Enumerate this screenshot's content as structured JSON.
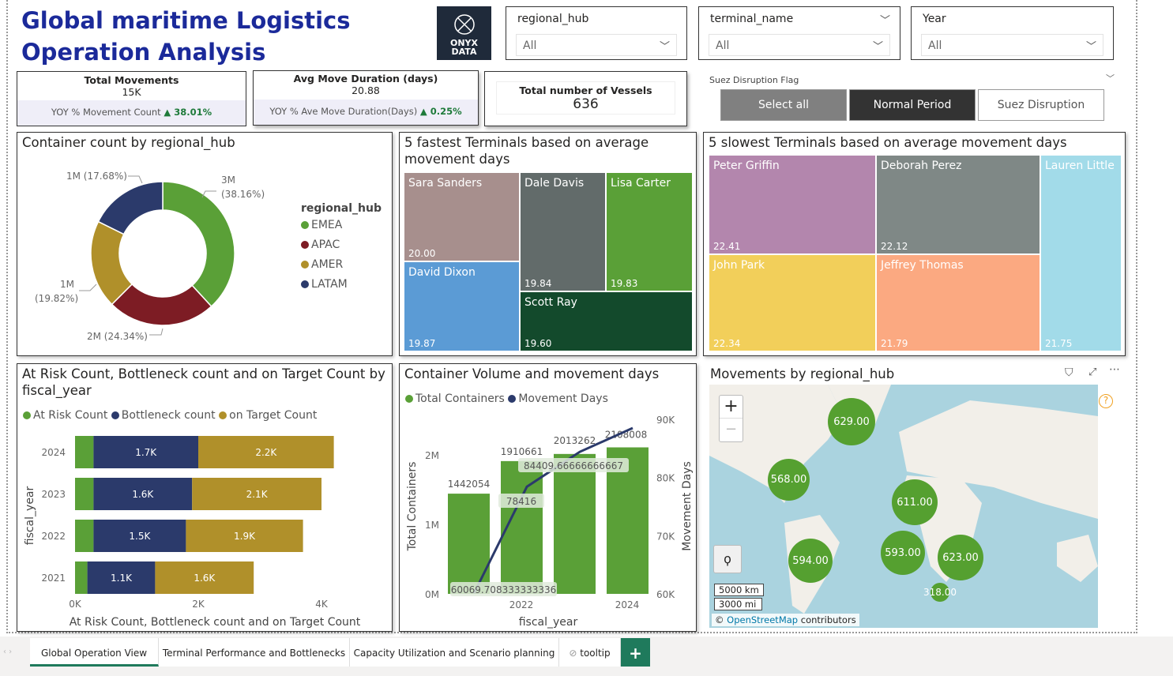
{
  "header": {
    "title": "Global maritime Logistics Operation Analysis",
    "logo_text": "ONYX DATA"
  },
  "slicers": [
    {
      "label": "regional_hub",
      "value": "All"
    },
    {
      "label": "terminal_name",
      "value": "All"
    },
    {
      "label": "Year",
      "value": "All"
    }
  ],
  "kpis": {
    "total_movements": {
      "title": "Total Movements",
      "value": "15K",
      "yoy_label": "YOY % Movement Count",
      "yoy_value": "▲ 38.01%"
    },
    "avg_duration": {
      "title": "Avg Move Duration (days)",
      "value": "20.88",
      "yoy_label": "YOY % Ave Move Duration(Days)",
      "yoy_value": "▲ 0.25%"
    },
    "vessels": {
      "title": "Total number of Vessels",
      "value": "636"
    }
  },
  "suez": {
    "label": "Suez Disruption Flag",
    "options": [
      "Select all",
      "Normal Period",
      "Suez Disruption"
    ],
    "selected": "Normal Period"
  },
  "donut": {
    "title": "Container count by regional_hub",
    "legend_title": "regional_hub",
    "slices": [
      {
        "name": "EMEA",
        "pct": 38.16,
        "label": "3M",
        "pct_label": "(38.16%)",
        "color": "#5aa037"
      },
      {
        "name": "APAC",
        "pct": 24.34,
        "label": "2M (24.34%)",
        "color": "#7d1c24"
      },
      {
        "name": "AMER",
        "pct": 19.82,
        "label": "1M",
        "pct_label": "(19.82%)",
        "color": "#b0902a"
      },
      {
        "name": "LATAM",
        "pct": 17.68,
        "label": "1M (17.68%)",
        "color": "#2b3a6b"
      }
    ]
  },
  "fastest": {
    "title": "5 fastest Terminals based on average movement days",
    "items": [
      {
        "name": "Sara Sanders",
        "value": "20.00"
      },
      {
        "name": "David Dixon",
        "value": "19.87"
      },
      {
        "name": "Dale Davis",
        "value": "19.84"
      },
      {
        "name": "Lisa Carter",
        "value": "19.83"
      },
      {
        "name": "Scott Ray",
        "value": "19.60"
      }
    ]
  },
  "slowest": {
    "title": "5 slowest Terminals based on average movement days",
    "items": [
      {
        "name": "Peter Griffin",
        "value": "22.41"
      },
      {
        "name": "Deborah Perez",
        "value": "22.12"
      },
      {
        "name": "Lauren Little",
        "value": "21.75"
      },
      {
        "name": "John Park",
        "value": "22.34"
      },
      {
        "name": "Jeffrey Thomas",
        "value": "21.79"
      }
    ]
  },
  "chart_data": [
    {
      "type": "bar",
      "title": "At Risk Count, Bottleneck count and on Target Count by fiscal_year",
      "xlabel": "At Risk Count, Bottleneck count and on Target Count",
      "ylabel": "fiscal_year",
      "orientation": "horizontal",
      "stacked": true,
      "categories": [
        "2024",
        "2023",
        "2022",
        "2021"
      ],
      "xlim": [
        0,
        4.3
      ],
      "xticks": [
        "0K",
        "2K",
        "4K"
      ],
      "legend": "top",
      "series": [
        {
          "name": "At Risk Count",
          "color": "#5aa037",
          "values": [
            0.3,
            0.3,
            0.3,
            0.2
          ],
          "labels": [
            "",
            "",
            "",
            ""
          ]
        },
        {
          "name": "Bottleneck count",
          "color": "#2b3a6b",
          "values": [
            1.7,
            1.6,
            1.5,
            1.1
          ],
          "labels": [
            "1.7K",
            "1.6K",
            "1.5K",
            "1.1K"
          ]
        },
        {
          "name": "on Target Count",
          "color": "#b0902a",
          "values": [
            2.2,
            2.1,
            1.9,
            1.6
          ],
          "labels": [
            "2.2K",
            "2.1K",
            "1.9K",
            "1.6K"
          ]
        }
      ]
    },
    {
      "type": "bar+line",
      "title": "Container Volume and movement days",
      "xlabel": "fiscal_year",
      "ylabel": "Total Containers",
      "y2label": "Movement Days",
      "legend": "top",
      "categories": [
        "2021",
        "2022",
        "2023",
        "2024"
      ],
      "xticks": [
        "2022",
        "2024"
      ],
      "ylim": [
        0,
        2000000
      ],
      "yticks": [
        "0M",
        "1M",
        "2M"
      ],
      "y2lim": [
        60000,
        90000
      ],
      "y2ticks": [
        "60K",
        "70K",
        "80K",
        "90K"
      ],
      "series": [
        {
          "name": "Total Containers",
          "type": "bar",
          "color": "#5aa037",
          "values": [
            1442054,
            1910661,
            2013262,
            2108008
          ],
          "labels": [
            "1442054",
            "1910661",
            "2013262",
            "2108008"
          ]
        },
        {
          "name": "Movement Days",
          "type": "line",
          "color": "#2b3a6b",
          "values": [
            60069.708333333336,
            78416,
            84409.66666666667,
            88500
          ],
          "labels": [
            "60069.708333333336",
            "78416",
            "84409.66666666667",
            ""
          ]
        }
      ]
    }
  ],
  "map": {
    "title": "Movements by regional_hub",
    "bubbles": [
      "629.00",
      "568.00",
      "611.00",
      "594.00",
      "593.00",
      "623.00",
      "318.00"
    ],
    "scale_km": "5000 km",
    "scale_mi": "3000 mi",
    "attribution_link": "OpenStreetMap",
    "attribution_rest": " contributors",
    "attribution_prefix": "© ",
    "zoom_in": "+",
    "zoom_out": "−",
    "help": "?"
  },
  "tabs": [
    {
      "label": "Global Operation View",
      "active": true
    },
    {
      "label": "Terminal Performance and Bottlenecks"
    },
    {
      "label": "Capacity Utilization and Scenario planning"
    },
    {
      "label": "tooltip"
    }
  ],
  "add_tab": "+"
}
